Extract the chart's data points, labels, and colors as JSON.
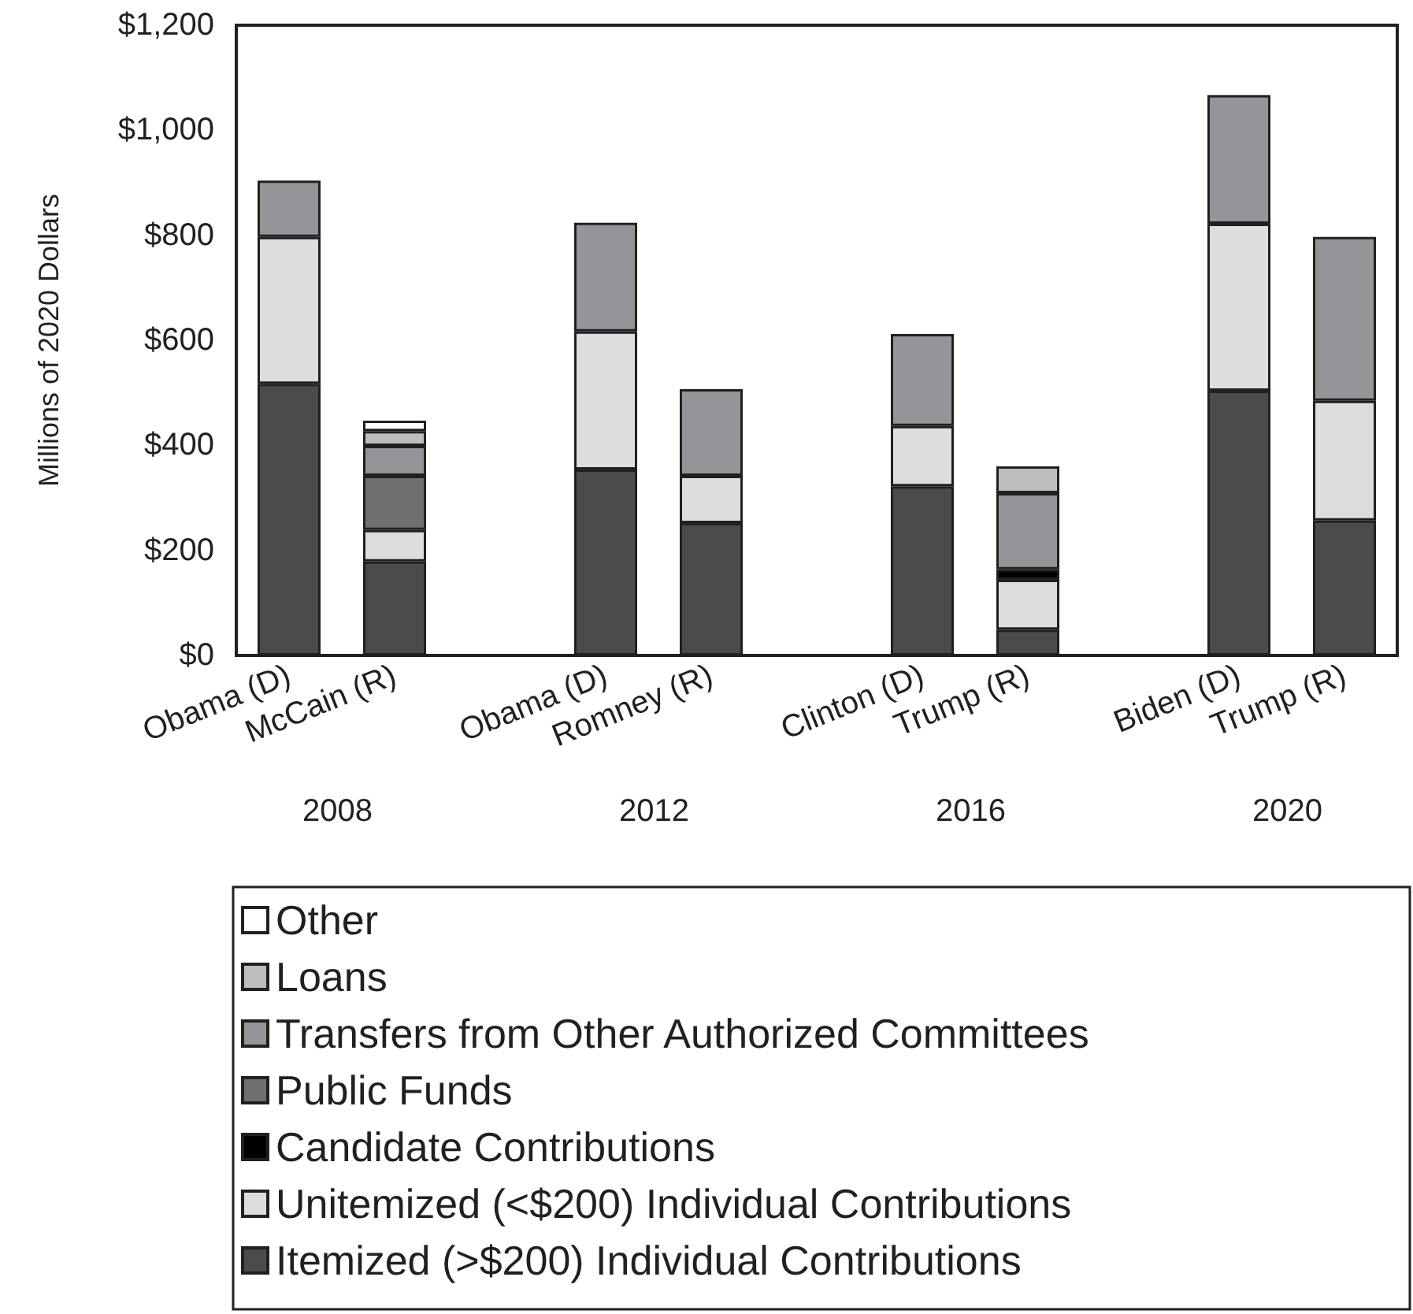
{
  "chart_data": {
    "type": "bar",
    "stacked": true,
    "ylabel": "Millions of 2020 Dollars",
    "categories": [
      "Obama (D)",
      "McCain (R)",
      null,
      "Obama (D)",
      "Romney (R)",
      null,
      "Clinton (D)",
      "Trump (R)",
      null,
      "Biden (D)",
      "Trump (R)"
    ],
    "series": [
      {
        "name": "Itemized (>$200) Individual Contributions",
        "color": "#4a4b4d",
        "values": [
          517,
          179,
          null,
          354,
          252,
          null,
          322,
          49,
          null,
          504,
          257
        ]
      },
      {
        "name": "Unitemized (<$200) Individual Contributions",
        "color": "#dcdddf",
        "values": [
          280,
          60,
          null,
          263,
          90,
          null,
          115,
          95,
          null,
          318,
          228
        ]
      },
      {
        "name": "Candidate Contributions",
        "color": "#000000",
        "values": [
          null,
          null,
          null,
          null,
          null,
          null,
          null,
          20,
          null,
          null,
          null
        ]
      },
      {
        "name": "Public Funds",
        "color": "#6f6f6f",
        "values": [
          null,
          103,
          null,
          null,
          null,
          null,
          null,
          null,
          null,
          null,
          null
        ]
      },
      {
        "name": "Transfers from Other Authorized Committees",
        "color": "#939598",
        "values": [
          107,
          57,
          null,
          207,
          165,
          null,
          175,
          145,
          null,
          245,
          312
        ]
      },
      {
        "name": "Loans",
        "color": "#bdbdbd",
        "values": [
          null,
          28,
          null,
          null,
          null,
          null,
          null,
          51,
          null,
          null,
          null
        ]
      },
      {
        "name": "Other",
        "color": "#ffffff",
        "values": [
          null,
          20,
          null,
          null,
          null,
          null,
          null,
          null,
          null,
          null,
          null
        ]
      }
    ],
    "ylim": [
      0,
      1200
    ],
    "yticks": [
      {
        "value": 0,
        "label": "$0"
      },
      {
        "value": 200,
        "label": "$200"
      },
      {
        "value": 400,
        "label": "$400"
      },
      {
        "value": 600,
        "label": "$600"
      },
      {
        "value": 800,
        "label": "$800"
      },
      {
        "value": 1000,
        "label": "$1,000"
      },
      {
        "value": 1200,
        "label": "$1,200"
      }
    ],
    "annotations": [
      "2008",
      "2012",
      "2016",
      "2020"
    ],
    "grid": false,
    "legend": "bottom"
  }
}
